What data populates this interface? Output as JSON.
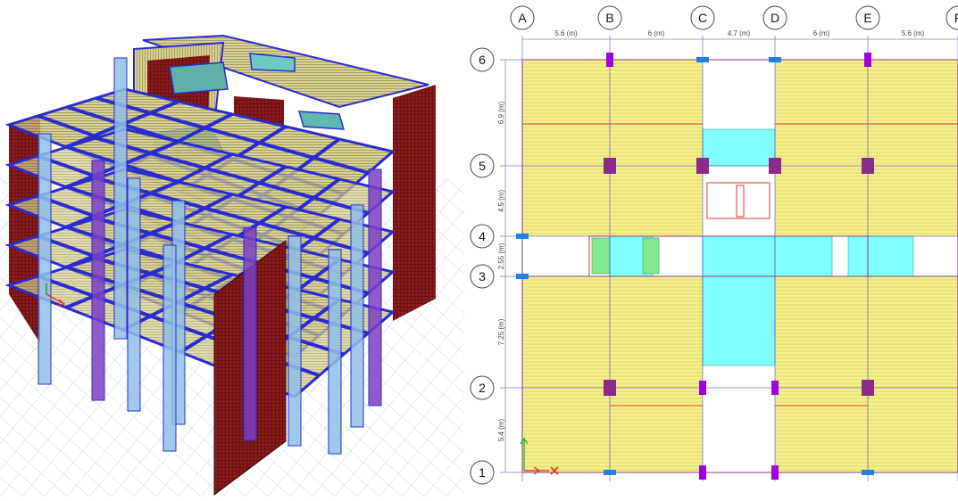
{
  "view3d": {
    "colors": {
      "beam": "#2a2bd0",
      "column_light": "#8fc0e8",
      "column_purple": "#7a3fc4",
      "shear_wall": "#8b1a1a",
      "slab": "#d9d28a",
      "slab_line": "#3a3a4a",
      "ground_grid": "#cfe0ee"
    },
    "axis_icon": "xyz-axis-icon"
  },
  "plan": {
    "colors": {
      "slab_fill": "#f5f08a",
      "slab_line": "#c9c25a",
      "grid_line": "#9aa0b0",
      "beam_red": "#e03030",
      "beam_blue": "#3a3ae0",
      "opening": "#80ffff",
      "green": "#80e890",
      "column_purple": "#a000e0",
      "column_dark": "#8b2a8b",
      "column_blue": "#2080e8"
    },
    "columns_labels": [
      "A",
      "B",
      "C",
      "D",
      "E",
      "F"
    ],
    "rows_labels": [
      "6",
      "5",
      "4",
      "3",
      "2",
      "1"
    ],
    "column_spacings": [
      "5.6 (m)",
      "6 (m)",
      "4.7 (m)",
      "6 (m)",
      "5.6 (m)"
    ],
    "row_spacings": [
      "6.9 (m)",
      "4.5 (m)",
      "2.55 (m)",
      "7.25 (m)",
      "5.4 (m)"
    ],
    "origin_icon": "origin-axis-icon"
  }
}
